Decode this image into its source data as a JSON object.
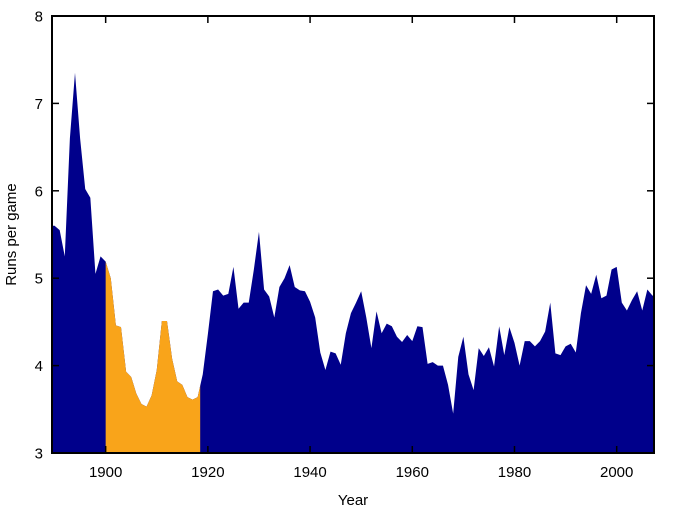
{
  "figure": {
    "background_color": "#ffffff",
    "border_color": "#000000",
    "text_color": "#000000"
  },
  "chart_data": {
    "type": "area",
    "title": "",
    "xlabel": "Year",
    "ylabel": "Runs per game",
    "xlim": [
      1889.5,
      2007.3
    ],
    "ylim": [
      3,
      8
    ],
    "x_ticks": [
      1900,
      1920,
      1940,
      1960,
      1980,
      2000
    ],
    "y_ticks": [
      3,
      4,
      5,
      6,
      7,
      8
    ],
    "grid": false,
    "legend": "none",
    "colors": {
      "series": "#00008B",
      "highlight": "#F9A41A"
    },
    "highlight_region": {
      "x_start": 1900,
      "x_end": 1918.5
    },
    "series": [
      {
        "name": "Runs per game",
        "x": [
          1890,
          1891,
          1892,
          1893,
          1894,
          1895,
          1896,
          1897,
          1898,
          1899,
          1900,
          1901,
          1902,
          1903,
          1904,
          1905,
          1906,
          1907,
          1908,
          1909,
          1910,
          1911,
          1912,
          1913,
          1914,
          1915,
          1916,
          1917,
          1918,
          1919,
          1920,
          1921,
          1922,
          1923,
          1924,
          1925,
          1926,
          1927,
          1928,
          1929,
          1930,
          1931,
          1932,
          1933,
          1934,
          1935,
          1936,
          1937,
          1938,
          1939,
          1940,
          1941,
          1942,
          1943,
          1944,
          1945,
          1946,
          1947,
          1948,
          1949,
          1950,
          1951,
          1952,
          1953,
          1954,
          1955,
          1956,
          1957,
          1958,
          1959,
          1960,
          1961,
          1962,
          1963,
          1964,
          1965,
          1966,
          1967,
          1968,
          1969,
          1970,
          1971,
          1972,
          1973,
          1974,
          1975,
          1976,
          1977,
          1978,
          1979,
          1980,
          1981,
          1982,
          1983,
          1984,
          1985,
          1986,
          1987,
          1988,
          1989,
          1990,
          1991,
          1992,
          1993,
          1994,
          1995,
          1996,
          1997,
          1998,
          1999,
          2000,
          2001,
          2002,
          2003,
          2004,
          2005,
          2006,
          2007
        ],
        "values": [
          5.6,
          5.55,
          5.25,
          6.6,
          7.35,
          6.6,
          6.02,
          5.92,
          5.05,
          5.25,
          5.19,
          5.0,
          4.46,
          4.44,
          3.93,
          3.87,
          3.68,
          3.56,
          3.53,
          3.66,
          3.95,
          4.51,
          4.51,
          4.08,
          3.82,
          3.78,
          3.64,
          3.61,
          3.64,
          3.9,
          4.36,
          4.85,
          4.87,
          4.8,
          4.82,
          5.13,
          4.65,
          4.72,
          4.72,
          5.1,
          5.53,
          4.87,
          4.79,
          4.55,
          4.9,
          5.0,
          5.15,
          4.9,
          4.86,
          4.85,
          4.73,
          4.55,
          4.15,
          3.95,
          4.16,
          4.14,
          4.01,
          4.37,
          4.6,
          4.72,
          4.85,
          4.55,
          4.2,
          4.62,
          4.37,
          4.48,
          4.45,
          4.33,
          4.27,
          4.35,
          4.28,
          4.45,
          4.44,
          4.02,
          4.04,
          4.0,
          4.0,
          3.78,
          3.45,
          4.1,
          4.33,
          3.9,
          3.72,
          4.2,
          4.11,
          4.21,
          3.99,
          4.45,
          4.12,
          4.44,
          4.26,
          4.0,
          4.28,
          4.28,
          4.22,
          4.28,
          4.39,
          4.72,
          4.14,
          4.12,
          4.22,
          4.25,
          4.15,
          4.6,
          4.92,
          4.82,
          5.04,
          4.77,
          4.8,
          5.1,
          5.13,
          4.72,
          4.63,
          4.75,
          4.85,
          4.63,
          4.87,
          4.8
        ]
      }
    ]
  }
}
